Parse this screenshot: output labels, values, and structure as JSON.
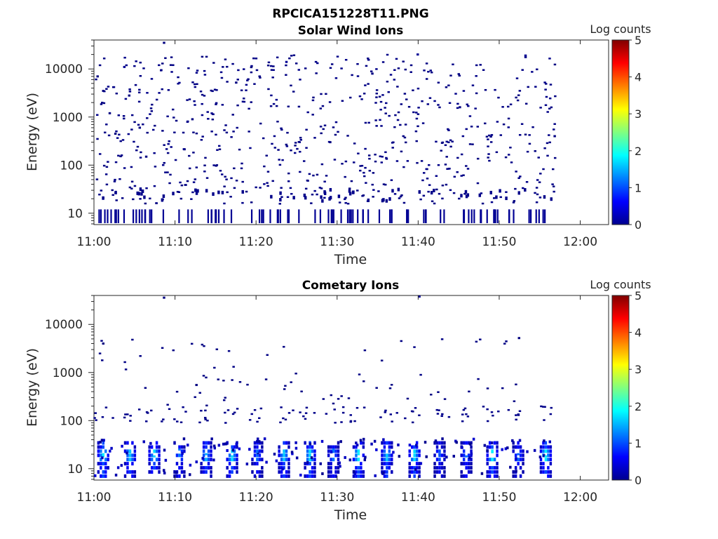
{
  "figure_title": "RPCICA151228T11.PNG",
  "colors": {
    "background": "#ffffff",
    "axes": "#262626",
    "data_marks": "#00008f"
  },
  "chart_data": [
    {
      "type": "heatmap",
      "title": "Solar Wind Ions",
      "xlabel": "Time",
      "ylabel": "Energy (eV)",
      "x_tick_labels": [
        "11:00",
        "11:10",
        "11:20",
        "11:30",
        "11:40",
        "11:50",
        "12:00"
      ],
      "x_ticks_minutes": [
        0,
        10,
        20,
        30,
        40,
        50,
        60
      ],
      "xlim_minutes": [
        0,
        63.5
      ],
      "y_tick_labels": [
        "10",
        "100",
        "1000",
        "10000"
      ],
      "y_ticks": [
        10,
        100,
        1000,
        10000
      ],
      "ylim": [
        5.8,
        40000
      ],
      "yscale": "log",
      "colorbar": {
        "label": "Log counts",
        "ticks": [
          "0",
          "1",
          "2",
          "3",
          "4",
          "5"
        ],
        "range": [
          0,
          5
        ],
        "colormap": "jet"
      },
      "data_extent_minutes": [
        0,
        56.8
      ],
      "description_level": "sparse single counts (log counts ~0) spread over 10 eV to 10 keV, denser streaks at low energy",
      "samples": [
        {
          "t": 0.3,
          "e": 7000,
          "v": 0
        },
        {
          "t": 1.0,
          "e": 3500,
          "v": 0
        },
        {
          "t": 1.8,
          "e": 1200,
          "v": 0
        },
        {
          "t": 2.5,
          "e": 450,
          "v": 0
        },
        {
          "t": 3.6,
          "e": 11000,
          "v": 0.1
        },
        {
          "t": 4.2,
          "e": 2800,
          "v": 0
        },
        {
          "t": 5.5,
          "e": 600,
          "v": 0
        },
        {
          "t": 6.3,
          "e": 150,
          "v": 0
        },
        {
          "t": 8.5,
          "e": 35000,
          "v": 0
        },
        {
          "t": 12.0,
          "e": 900,
          "v": 0
        },
        {
          "t": 17.4,
          "e": 5200,
          "v": 0
        },
        {
          "t": 23.6,
          "e": 14000,
          "v": 0.1
        },
        {
          "t": 29.0,
          "e": 300,
          "v": 0
        },
        {
          "t": 34.2,
          "e": 8000,
          "v": 0
        },
        {
          "t": 39.8,
          "e": 20000,
          "v": 0.1
        },
        {
          "t": 45.0,
          "e": 1600,
          "v": 0
        },
        {
          "t": 53.1,
          "e": 19000,
          "v": 0.1
        },
        {
          "t": 56.7,
          "e": 400,
          "v": 0
        }
      ]
    },
    {
      "type": "heatmap",
      "title": "Cometary Ions",
      "xlabel": "Time",
      "ylabel": "Energy (eV)",
      "x_tick_labels": [
        "11:00",
        "11:10",
        "11:20",
        "11:30",
        "11:40",
        "11:50",
        "12:00"
      ],
      "x_ticks_minutes": [
        0,
        10,
        20,
        30,
        40,
        50,
        60
      ],
      "xlim_minutes": [
        0,
        63.5
      ],
      "y_tick_labels": [
        "10",
        "100",
        "1000",
        "10000"
      ],
      "y_ticks": [
        10,
        100,
        1000,
        10000
      ],
      "ylim": [
        5.8,
        40000
      ],
      "yscale": "log",
      "colorbar": {
        "label": "Log counts",
        "ticks": [
          "0",
          "1",
          "2",
          "3",
          "4",
          "5"
        ],
        "range": [
          0,
          5
        ],
        "colormap": "jet"
      },
      "data_extent_minutes": [
        0,
        56.2
      ],
      "description_level": "periodic bursts below ~40 eV reaching log counts ~1.5-2, sparse counts 100 eV to 5 keV",
      "burst_times_minutes": [
        1.0,
        4.3,
        7.3,
        10.4,
        13.7,
        16.9,
        20.0,
        23.3,
        26.5,
        29.4,
        32.5,
        36.0,
        39.4,
        42.5,
        45.8,
        49.0,
        52.2,
        55.6
      ],
      "samples": [
        {
          "t": 1.0,
          "e": 20,
          "v": 1.8
        },
        {
          "t": 4.3,
          "e": 22,
          "v": 1.6
        },
        {
          "t": 7.3,
          "e": 18,
          "v": 1.7
        },
        {
          "t": 10.4,
          "e": 25,
          "v": 1.2
        },
        {
          "t": 13.7,
          "e": 20,
          "v": 1.5
        },
        {
          "t": 16.9,
          "e": 18,
          "v": 1.7
        },
        {
          "t": 20.0,
          "e": 22,
          "v": 1.1
        },
        {
          "t": 23.3,
          "e": 20,
          "v": 1.6
        },
        {
          "t": 26.5,
          "e": 22,
          "v": 1.7
        },
        {
          "t": 29.4,
          "e": 25,
          "v": 1.2
        },
        {
          "t": 32.5,
          "e": 20,
          "v": 1.8
        },
        {
          "t": 36.0,
          "e": 18,
          "v": 1.6
        },
        {
          "t": 39.4,
          "e": 22,
          "v": 1.7
        },
        {
          "t": 42.5,
          "e": 20,
          "v": 1.0
        },
        {
          "t": 45.8,
          "e": 18,
          "v": 1.2
        },
        {
          "t": 49.0,
          "e": 22,
          "v": 1.8
        },
        {
          "t": 52.2,
          "e": 20,
          "v": 1.1
        },
        {
          "t": 55.6,
          "e": 18,
          "v": 1.8
        },
        {
          "t": 8.5,
          "e": 36000,
          "v": 0
        },
        {
          "t": 40.0,
          "e": 38000,
          "v": 0.1
        },
        {
          "t": 12.5,
          "e": 550,
          "v": 0
        },
        {
          "t": 52.3,
          "e": 5200,
          "v": 0
        },
        {
          "t": 1.0,
          "e": 4000,
          "v": 0
        }
      ]
    }
  ]
}
